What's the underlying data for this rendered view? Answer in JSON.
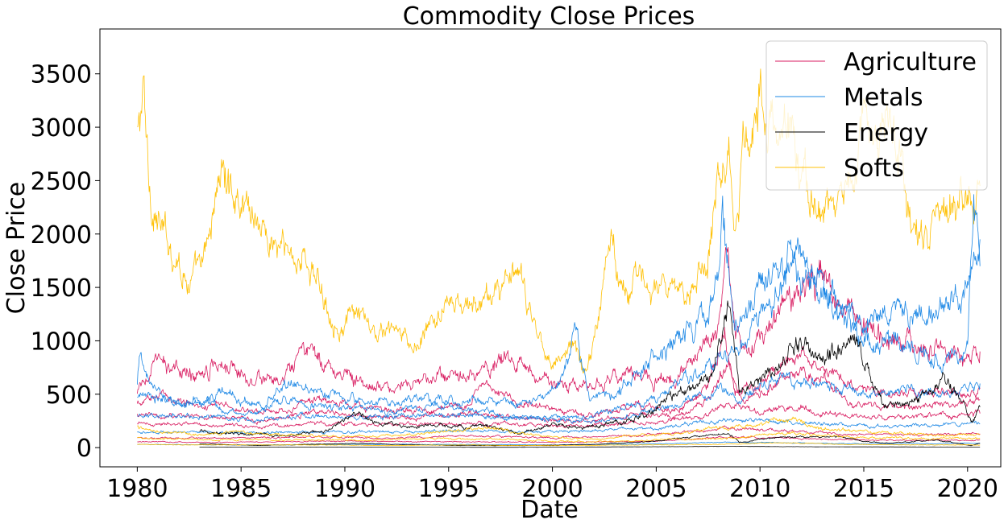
{
  "chart_data": {
    "type": "line",
    "title": "Commodity Close Prices",
    "xlabel": "Date",
    "ylabel": "Close Price",
    "xlim": [
      1978.2,
      2021.6
    ],
    "ylim": [
      -180,
      3920
    ],
    "x_ticks": [
      1980,
      1985,
      1990,
      1995,
      2000,
      2005,
      2010,
      2015,
      2020
    ],
    "x_tick_labels": [
      "1980",
      "1985",
      "1990",
      "1995",
      "2000",
      "2005",
      "2010",
      "2015",
      "2020"
    ],
    "y_ticks": [
      0,
      500,
      1000,
      1500,
      2000,
      2500,
      3000,
      3500
    ],
    "y_tick_labels": [
      "0",
      "500",
      "1000",
      "1500",
      "2000",
      "2500",
      "3000",
      "3500"
    ],
    "grid": false,
    "legend_position": "top-right",
    "legend": [
      {
        "label": "Agriculture",
        "color": "#d81b60"
      },
      {
        "label": "Metals",
        "color": "#1e88e5"
      },
      {
        "label": "Energy",
        "color": "#000000"
      },
      {
        "label": "Softs",
        "color": "#ffc107"
      }
    ],
    "series": [
      {
        "name": "Softs",
        "group": "Softs",
        "color": "#ffc107",
        "noise": 0.05,
        "x": [
          1980.0,
          1980.3,
          1980.6,
          1981.2,
          1981.6,
          1982.5,
          1983.2,
          1984.0,
          1984.5,
          1985.5,
          1986.5,
          1987.5,
          1988.2,
          1989.0,
          1989.8,
          1990.5,
          1991.5,
          1992.5,
          1993.3,
          1994.0,
          1995.0,
          1996.0,
          1997.0,
          1997.8,
          1998.5,
          1999.0,
          2000.0,
          2000.5,
          2001.0,
          2001.5,
          2002.0,
          2002.8,
          2003.3,
          2004.0,
          2005.0,
          2006.0,
          2006.5,
          2007.5,
          2008.0,
          2008.5,
          2008.8,
          2009.3,
          2010.0,
          2010.5,
          2011.0,
          2011.5,
          2012.0,
          2012.5,
          2013.5,
          2014.5,
          2015.0,
          2015.5,
          2016.0,
          2016.8,
          2017.3,
          2018.0,
          2018.5,
          2019.0,
          2019.5,
          2020.0,
          2020.6
        ],
        "y": [
          2900,
          3300,
          2400,
          2000,
          1900,
          1550,
          1700,
          2600,
          2450,
          2250,
          1900,
          1800,
          1750,
          1400,
          1100,
          1250,
          1050,
          1100,
          900,
          1100,
          1350,
          1300,
          1400,
          1600,
          1550,
          1200,
          800,
          850,
          1000,
          700,
          1000,
          2000,
          1600,
          1550,
          1500,
          1400,
          1500,
          1800,
          2700,
          2800,
          2100,
          2900,
          3300,
          3000,
          2800,
          3100,
          2500,
          2300,
          2200,
          2600,
          3000,
          2900,
          3100,
          2800,
          2000,
          1900,
          2100,
          2200,
          2300,
          2500,
          2450
        ]
      },
      {
        "name": "Agriculture",
        "group": "Agriculture",
        "color": "#d81b60",
        "noise": 0.06,
        "x": [
          1980.0,
          1980.5,
          1981.0,
          1982.0,
          1983.0,
          1984.0,
          1985.0,
          1986.0,
          1987.0,
          1988.3,
          1988.6,
          1989.5,
          1990.5,
          1991.5,
          1992.5,
          1993.5,
          1994.5,
          1995.5,
          1996.5,
          1997.3,
          1998.0,
          1999.0,
          2000.0,
          2001.0,
          2002.0,
          2003.0,
          2004.0,
          2005.0,
          2006.0,
          2007.0,
          2007.5,
          2008.0,
          2008.4,
          2008.7,
          2009.0,
          2010.0,
          2010.5,
          2011.0,
          2011.5,
          2012.0,
          2012.6,
          2013.5,
          2014.5,
          2015.5,
          2016.5,
          2017.5,
          2018.5,
          2019.5,
          2020.0,
          2020.6
        ],
        "y": [
          500,
          700,
          800,
          700,
          700,
          850,
          700,
          650,
          600,
          950,
          800,
          750,
          650,
          550,
          600,
          600,
          650,
          650,
          700,
          850,
          800,
          700,
          600,
          550,
          600,
          650,
          700,
          650,
          650,
          900,
          1000,
          1200,
          1800,
          1200,
          1000,
          1000,
          1100,
          1300,
          1400,
          1400,
          1700,
          1500,
          1300,
          1100,
          1000,
          1000,
          950,
          900,
          850,
          900
        ]
      },
      {
        "name": "Agriculture",
        "group": "Agriculture",
        "color": "#d81b60",
        "noise": 0.05,
        "x": [
          1980.0,
          1981.0,
          1982.0,
          1983.0,
          1984.0,
          1985.0,
          1987.0,
          1988.5,
          1990.0,
          1992.0,
          1994.0,
          1996.0,
          1996.6,
          1998.0,
          2000.0,
          2002.0,
          2004.0,
          2006.0,
          2007.5,
          2008.3,
          2008.8,
          2010.0,
          2011.0,
          2012.0,
          2012.7,
          2014.0,
          2015.0,
          2016.0,
          2018.0,
          2019.0,
          2020.0,
          2020.6
        ],
        "y": [
          400,
          500,
          450,
          400,
          400,
          350,
          350,
          450,
          400,
          350,
          350,
          400,
          650,
          450,
          350,
          300,
          400,
          350,
          550,
          1100,
          500,
          600,
          800,
          850,
          800,
          600,
          550,
          500,
          500,
          550,
          500,
          550
        ]
      },
      {
        "name": "Agriculture",
        "group": "Agriculture",
        "color": "#d81b60",
        "noise": 0.05,
        "x": [
          1980.0,
          1982.0,
          1984.0,
          1986.0,
          1988.5,
          1990.0,
          1992.0,
          1994.0,
          1996.0,
          1998.0,
          2000.0,
          2002.0,
          2004.0,
          2006.0,
          2007.5,
          2008.5,
          2009.0,
          2010.5,
          2011.5,
          2013.0,
          2014.5,
          2016.0,
          2018.0,
          2020.0,
          2020.6
        ],
        "y": [
          300,
          300,
          280,
          250,
          350,
          300,
          280,
          300,
          320,
          300,
          250,
          250,
          300,
          300,
          450,
          750,
          450,
          550,
          700,
          650,
          400,
          380,
          400,
          420,
          450
        ]
      },
      {
        "name": "Agriculture",
        "group": "Agriculture",
        "color": "#d81b60",
        "noise": 0.05,
        "x": [
          1980.0,
          1983.0,
          1986.0,
          1989.0,
          1992.0,
          1995.0,
          1998.0,
          2001.0,
          2004.0,
          2007.0,
          2008.5,
          2010.0,
          2012.0,
          2014.0,
          2016.0,
          2018.0,
          2020.6
        ],
        "y": [
          220,
          220,
          200,
          230,
          210,
          230,
          220,
          200,
          230,
          280,
          420,
          330,
          380,
          300,
          290,
          300,
          320
        ]
      },
      {
        "name": "Agriculture",
        "group": "Agriculture",
        "color": "#d81b60",
        "noise": 0.05,
        "x": [
          1980.0,
          1984.0,
          1988.0,
          1992.0,
          1996.0,
          2000.0,
          2004.0,
          2008.5,
          2011.0,
          2014.0,
          2017.0,
          2020.6
        ],
        "y": [
          90,
          90,
          100,
          90,
          110,
          90,
          110,
          180,
          160,
          130,
          120,
          130
        ]
      },
      {
        "name": "Agriculture",
        "group": "Agriculture",
        "color": "#d81b60",
        "noise": 0.05,
        "x": [
          1980.0,
          1985.0,
          1990.0,
          1995.0,
          2000.0,
          2005.0,
          2008.5,
          2011.0,
          2015.0,
          2020.6
        ],
        "y": [
          55,
          50,
          60,
          55,
          50,
          60,
          100,
          90,
          70,
          70
        ]
      },
      {
        "name": "Metals",
        "group": "Metals",
        "color": "#1e88e5",
        "noise": 0.05,
        "x": [
          1980.0,
          1980.1,
          1980.5,
          1981.0,
          1982.0,
          1983.0,
          1984.0,
          1985.0,
          1986.0,
          1987.0,
          1988.0,
          1989.0,
          1990.0,
          1991.0,
          1992.0,
          1993.0,
          1994.0,
          1995.0,
          1996.0,
          1997.0,
          1998.0,
          1999.0,
          2000.0,
          2001.0,
          2002.0,
          2003.0,
          2004.0,
          2005.0,
          2006.0,
          2007.0,
          2008.0,
          2008.5,
          2009.0,
          2010.0,
          2011.0,
          2011.7,
          2012.5,
          2013.0,
          2013.5,
          2014.0,
          2015.0,
          2016.0,
          2017.0,
          2018.0,
          2019.0,
          2019.5,
          2020.0,
          2020.3,
          2020.6
        ],
        "y": [
          600,
          900,
          600,
          500,
          400,
          420,
          380,
          320,
          340,
          450,
          430,
          380,
          380,
          360,
          340,
          360,
          380,
          380,
          370,
          340,
          290,
          280,
          280,
          270,
          310,
          360,
          410,
          440,
          600,
          700,
          870,
          900,
          900,
          1200,
          1500,
          1800,
          1700,
          1600,
          1300,
          1250,
          1150,
          1250,
          1250,
          1250,
          1350,
          1450,
          1550,
          1750,
          1950
        ]
      },
      {
        "name": "Metals",
        "group": "Metals",
        "color": "#1e88e5",
        "noise": 0.06,
        "x": [
          1980.0,
          1981.0,
          1982.5,
          1984.0,
          1986.0,
          1987.5,
          1989.0,
          1991.0,
          1993.0,
          1995.0,
          1997.0,
          1999.0,
          2000.5,
          2001.1,
          2001.8,
          2003.0,
          2004.5,
          2006.0,
          2007.5,
          2008.2,
          2008.6,
          2009.0,
          2010.0,
          2011.0,
          2011.5,
          2012.0,
          2013.5,
          2015.0,
          2016.0,
          2017.0,
          2018.0,
          2019.0,
          2020.0,
          2020.3,
          2020.6
        ],
        "y": [
          500,
          450,
          420,
          500,
          420,
          600,
          500,
          420,
          450,
          450,
          420,
          400,
          600,
          1100,
          450,
          500,
          800,
          1000,
          1200,
          2200,
          1400,
          1100,
          1500,
          1700,
          1800,
          1600,
          1400,
          1000,
          1050,
          950,
          850,
          900,
          850,
          2400,
          1700
        ]
      },
      {
        "name": "Metals",
        "group": "Metals",
        "color": "#1e88e5",
        "noise": 0.05,
        "x": [
          1980.0,
          1982.0,
          1984.0,
          1986.0,
          1988.0,
          1990.0,
          1993.0,
          1996.0,
          1999.0,
          2002.0,
          2004.0,
          2006.0,
          2008.0,
          2009.0,
          2011.0,
          2013.0,
          2015.0,
          2017.0,
          2019.0,
          2020.6
        ],
        "y": [
          300,
          300,
          280,
          250,
          300,
          280,
          300,
          300,
          280,
          250,
          300,
          400,
          550,
          450,
          650,
          600,
          500,
          550,
          500,
          600
        ]
      },
      {
        "name": "Metals",
        "group": "Metals",
        "color": "#1e88e5",
        "noise": 0.05,
        "x": [
          1980.0,
          1985.0,
          1990.0,
          1995.0,
          2000.0,
          2005.0,
          2008.0,
          2011.0,
          2015.0,
          2020.6
        ],
        "y": [
          150,
          140,
          150,
          160,
          150,
          180,
          260,
          240,
          200,
          220
        ]
      },
      {
        "name": "Metals",
        "group": "Metals",
        "color": "#1e88e5",
        "noise": 0.05,
        "x": [
          1980.0,
          1985.0,
          1990.0,
          1995.0,
          2000.0,
          2005.0,
          2008.0,
          2011.0,
          2015.0,
          2020.6
        ],
        "y": [
          30,
          25,
          30,
          30,
          25,
          35,
          50,
          45,
          35,
          40
        ]
      },
      {
        "name": "Energy",
        "group": "Energy",
        "color": "#000000",
        "noise": 0.06,
        "x": [
          1983.0,
          1985.0,
          1987.0,
          1989.0,
          1990.6,
          1991.5,
          1993.0,
          1995.0,
          1997.0,
          1998.5,
          2000.0,
          2001.5,
          2003.0,
          2004.5,
          2005.5,
          2006.5,
          2007.5,
          2008.2,
          2008.5,
          2009.0,
          2010.0,
          2011.0,
          2011.7,
          2012.5,
          2013.0,
          2014.0,
          2014.6,
          2015.5,
          2016.0,
          2017.0,
          2018.0,
          2018.8,
          2019.5,
          2020.2,
          2020.6
        ],
        "y": [
          150,
          130,
          110,
          160,
          320,
          230,
          200,
          200,
          200,
          130,
          220,
          180,
          230,
          300,
          450,
          550,
          650,
          1050,
          1350,
          500,
          650,
          750,
          1000,
          900,
          850,
          900,
          1000,
          600,
          400,
          400,
          500,
          650,
          500,
          250,
          380
        ]
      },
      {
        "name": "Energy",
        "group": "Energy",
        "color": "#000000",
        "noise": 0.05,
        "x": [
          1983.0,
          1986.0,
          1990.5,
          1995.0,
          1999.0,
          2002.0,
          2005.0,
          2008.5,
          2009.0,
          2011.0,
          2014.0,
          2015.0,
          2016.0,
          2018.5,
          2020.2,
          2020.6
        ],
        "y": [
          35,
          20,
          40,
          20,
          20,
          30,
          60,
          140,
          50,
          100,
          100,
          60,
          40,
          70,
          20,
          40
        ]
      },
      {
        "name": "Energy",
        "group": "Energy",
        "color": "#000000",
        "noise": 0.05,
        "x": [
          1983.0,
          1990.0,
          1998.0,
          2005.0,
          2008.5,
          2012.0,
          2020.6
        ],
        "y": [
          5,
          5,
          3,
          8,
          12,
          8,
          5
        ]
      },
      {
        "name": "Softs",
        "group": "Softs",
        "color": "#ffc107",
        "noise": 0.06,
        "x": [
          1980.0,
          1981.0,
          1983.0,
          1985.0,
          1987.0,
          1990.0,
          1993.0,
          1995.0,
          1997.0,
          2000.0,
          2002.0,
          2004.0,
          2006.0,
          2008.0,
          2010.0,
          2011.0,
          2013.0,
          2015.0,
          2017.0,
          2019.0,
          2020.6
        ],
        "y": [
          200,
          150,
          120,
          150,
          120,
          100,
          120,
          150,
          180,
          100,
          80,
          120,
          130,
          180,
          200,
          280,
          180,
          150,
          130,
          110,
          120
        ]
      },
      {
        "name": "Softs",
        "group": "Softs",
        "color": "#ffc107",
        "noise": 0.06,
        "x": [
          1980.0,
          1982.0,
          1985.0,
          1988.0,
          1991.0,
          1994.0,
          1997.0,
          2000.0,
          2003.0,
          2006.0,
          2009.0,
          2011.0,
          2014.0,
          2017.0,
          2020.6
        ],
        "y": [
          90,
          80,
          70,
          75,
          70,
          85,
          80,
          60,
          55,
          80,
          90,
          140,
          100,
          90,
          85
        ]
      },
      {
        "name": "Softs",
        "group": "Softs",
        "color": "#ffc107",
        "noise": 0.06,
        "x": [
          1980.0,
          1984.0,
          1988.0,
          1992.0,
          1996.0,
          2000.0,
          2004.0,
          2008.0,
          2011.0,
          2014.0,
          2017.0,
          2020.6
        ],
        "y": [
          30,
          25,
          25,
          20,
          25,
          18,
          25,
          30,
          45,
          30,
          25,
          25
        ]
      }
    ]
  }
}
